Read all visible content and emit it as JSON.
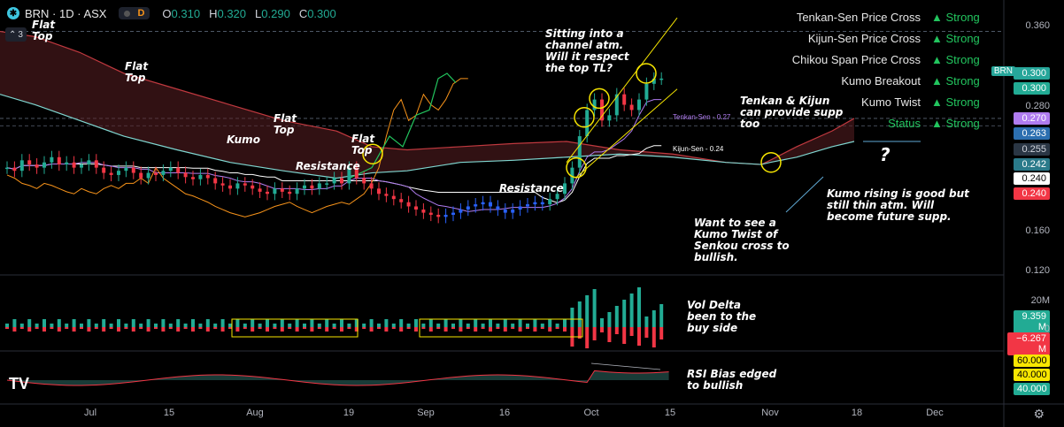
{
  "header": {
    "symbol": "BRN · 1D · ASX",
    "mode_letter": "D",
    "ohlc": [
      {
        "k": "O",
        "v": "0.310"
      },
      {
        "k": "H",
        "v": "0.320"
      },
      {
        "k": "L",
        "v": "0.290"
      },
      {
        "k": "C",
        "v": "0.300"
      }
    ],
    "collapse_count": "3"
  },
  "signals": [
    {
      "label": "Tenkan-Sen Price Cross",
      "status": "▲ Strong"
    },
    {
      "label": "Kijun-Sen Price Cross",
      "status": "▲ Strong"
    },
    {
      "label": "Chikou Span Price Cross",
      "status": "▲ Strong"
    },
    {
      "label": "Kumo Breakout",
      "status": "▲ Strong"
    },
    {
      "label": "Kumo Twist",
      "status": "▲ Strong"
    },
    {
      "label": "Status",
      "status": "▲ Strong"
    }
  ],
  "annotations": {
    "flat_top_1": "Flat\nTop",
    "flat_top_2": "Flat\nTop",
    "flat_top_3": "Flat\nTop",
    "flat_top_4": "Flat\nTop",
    "kumo": "Kumo",
    "resistance_1": "Resistance",
    "resistance_2": "Resistance",
    "channel": "Sitting into a\nchannel atm.\nWill it respect\nthe top TL?",
    "tenkan_kijun": "Tenkan & Kijun\ncan provide supp\ntoo",
    "kumo_twist": "Want to see a\nKumo Twist of\nSenkou cross to\nbullish.",
    "kumo_rising": "Kumo rising is good but\nstill thin atm. Will\nbecome future supp.",
    "vol_delta": "Vol Delta\nbeen to the\nbuy side",
    "rsi": "RSI Bias edged\nto bullish",
    "question": "?"
  },
  "ichimoku_labels": {
    "tenkan": "Tenkan-Sen - 0.27",
    "kijun": "Kijun-Sen - 0.24"
  },
  "symbol_badge": "BRN",
  "price_labels": [
    {
      "text": "0.300",
      "color": "#26a69a",
      "fg": "#ffffff"
    },
    {
      "text": "0.300",
      "color": "#22ab94",
      "fg": "#ffffff"
    },
    {
      "text": "0.270",
      "color": "#b07cf0",
      "fg": "#ffffff"
    },
    {
      "text": "0.263",
      "color": "#2c6fb0",
      "fg": "#ffffff"
    },
    {
      "text": "0.255",
      "color": "#2a3644",
      "fg": "#d1d4dc"
    },
    {
      "text": "0.242",
      "color": "#2a7a8a",
      "fg": "#ffffff"
    },
    {
      "text": "0.240",
      "color": "#ffffff",
      "fg": "#000000"
    },
    {
      "text": "0.240",
      "color": "#f23645",
      "fg": "#ffffff"
    }
  ],
  "vol_labels": [
    {
      "text": "20M"
    },
    {
      "text": "9.359 M",
      "color": "#22ab94"
    },
    {
      "text": "0"
    },
    {
      "text": "−6.267 M",
      "color": "#f23645"
    }
  ],
  "rsi_labels": [
    {
      "text": "60.000",
      "color": "#f7e600"
    },
    {
      "text": "40.000",
      "color": "#f7e600"
    },
    {
      "text": "40.000",
      "color": "#22ab94"
    }
  ],
  "chart_data": {
    "type": "candlestick",
    "symbol": "BRN",
    "interval": "1D",
    "y_ticks": [
      0.36,
      0.32,
      0.28,
      0.24,
      0.2,
      0.16,
      0.12
    ],
    "y_tick_labels": [
      "0.360",
      "0.320",
      "0.280",
      "0.240",
      "0.200",
      "0.160",
      "0.120"
    ],
    "ylim": [
      0.105,
      0.375
    ],
    "x_ticks": [
      "Jul",
      "15",
      "Aug",
      "19",
      "Sep",
      "16",
      "Oct",
      "15",
      "Nov",
      "18",
      "Dec"
    ],
    "close_series": [
      0.215,
      0.212,
      0.222,
      0.218,
      0.215,
      0.22,
      0.225,
      0.218,
      0.22,
      0.215,
      0.218,
      0.222,
      0.215,
      0.21,
      0.208,
      0.212,
      0.215,
      0.21,
      0.205,
      0.21,
      0.208,
      0.212,
      0.215,
      0.21,
      0.206,
      0.204,
      0.208,
      0.205,
      0.2,
      0.198,
      0.195,
      0.2,
      0.198,
      0.195,
      0.192,
      0.19,
      0.195,
      0.192,
      0.19,
      0.195,
      0.198,
      0.195,
      0.2,
      0.2,
      0.205,
      0.2,
      0.215,
      0.205,
      0.2,
      0.195,
      0.19,
      0.188,
      0.185,
      0.182,
      0.178,
      0.175,
      0.172,
      0.17,
      0.168,
      0.17,
      0.172,
      0.175,
      0.178,
      0.18,
      0.182,
      0.178,
      0.175,
      0.172,
      0.175,
      0.178,
      0.18,
      0.182,
      0.18,
      0.185,
      0.19,
      0.2,
      0.215,
      0.245,
      0.27,
      0.28,
      0.26,
      0.265,
      0.285,
      0.275,
      0.27,
      0.28,
      0.295,
      0.3,
      0.3
    ],
    "tenkan_sen": 0.27,
    "kijun_sen": 0.24,
    "volume_delta": {
      "positive": 9.359,
      "negative": -6.267,
      "unit": "M"
    },
    "rsi_bias": [
      60,
      40,
      40
    ]
  },
  "colors": {
    "bull": "#22ab94",
    "bear": "#f23645",
    "cloud_bear": "#5a1f22",
    "cloud_bull": "#1f4a45",
    "tenkan": "#b07cf0",
    "kijun": "#ffffff",
    "chikou": "#22c55e",
    "ann_yellow": "#f7e600",
    "trend": "#5fa8d3"
  }
}
